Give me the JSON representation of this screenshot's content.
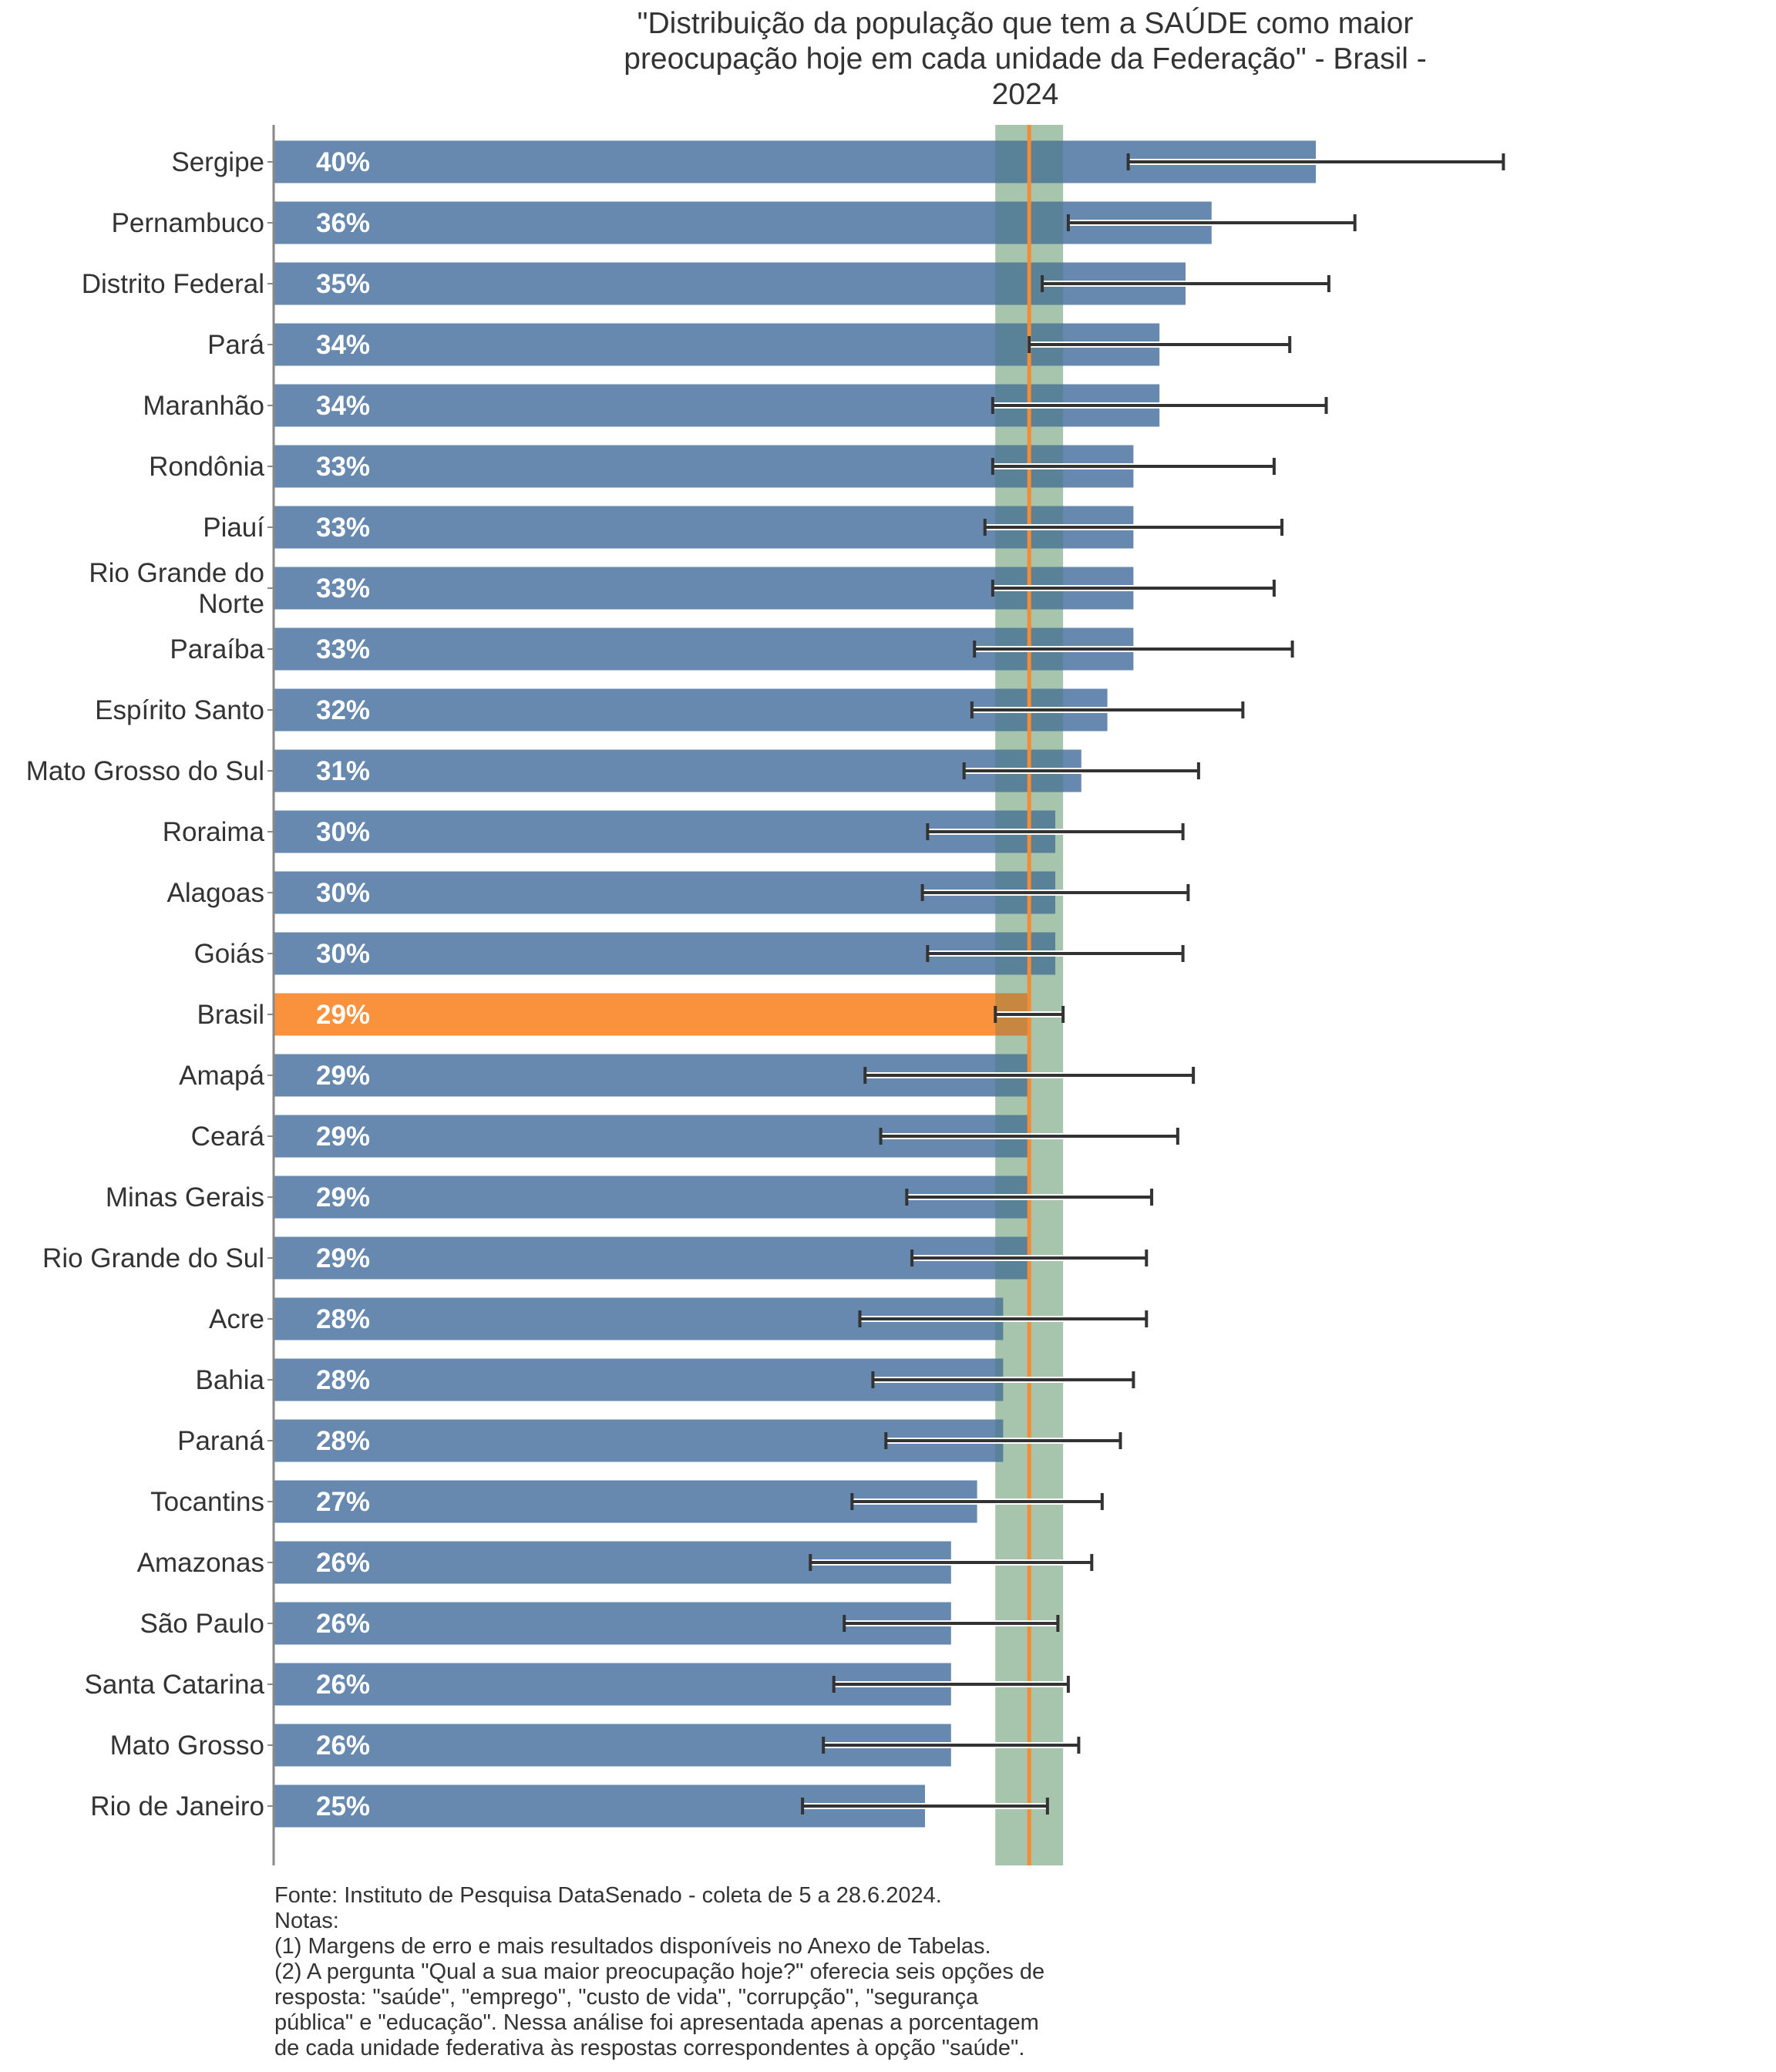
{
  "title": {
    "lines": [
      "\"Distribuição da população que tem a SAÚDE como maior",
      "preocupação hoje em cada unidade da Federação\" - Brasil -",
      "2024"
    ]
  },
  "colors": {
    "bar": "#6789b0",
    "highlight_bar": "#fa913c",
    "reference_line": "#f58b33",
    "reference_band": "#cfe2cc",
    "error_bar": "#333333",
    "axis": "#888888"
  },
  "chart_data": {
    "type": "bar",
    "orientation": "horizontal",
    "title": "\"Distribuição da população que tem a SAÚDE como maior preocupação hoje em cada unidade da Federação\" - Brasil - 2024",
    "xlabel": "",
    "ylabel": "",
    "xlim": [
      0,
      60
    ],
    "grid": false,
    "unit": "%",
    "categories": [
      "Sergipe",
      "Pernambuco",
      "Distrito Federal",
      "Pará",
      "Maranhão",
      "Rondônia",
      "Piauí",
      "Rio Grande do Norte",
      "Paraíba",
      "Espírito Santo",
      "Mato Grosso do Sul",
      "Roraima",
      "Alagoas",
      "Goiás",
      "Brasil",
      "Amapá",
      "Ceará",
      "Minas Gerais",
      "Rio Grande do Sul",
      "Acre",
      "Bahia",
      "Paraná",
      "Tocantins",
      "Amazonas",
      "São Paulo",
      "Santa Catarina",
      "Mato Grosso",
      "Rio de Janeiro"
    ],
    "category_display": [
      "Sergipe",
      "Pernambuco",
      "Distrito Federal",
      "Pará",
      "Maranhão",
      "Rondônia",
      "Piauí",
      "Rio Grande do\nNorte",
      "Paraíba",
      "Espírito Santo",
      "Mato Grosso do Sul",
      "Roraima",
      "Alagoas",
      "Goiás",
      "Brasil",
      "Amapá",
      "Ceará",
      "Minas Gerais",
      "Rio Grande do Sul",
      "Acre",
      "Bahia",
      "Paraná",
      "Tocantins",
      "Amazonas",
      "São Paulo",
      "Santa Catarina",
      "Mato Grosso",
      "Rio de Janeiro"
    ],
    "values": [
      40,
      36,
      35,
      34,
      34,
      33,
      33,
      33,
      33,
      32,
      31,
      30,
      30,
      30,
      29,
      29,
      29,
      29,
      29,
      28,
      28,
      28,
      27,
      26,
      26,
      26,
      26,
      25
    ],
    "value_labels": [
      "40%",
      "36%",
      "35%",
      "34%",
      "34%",
      "33%",
      "33%",
      "33%",
      "33%",
      "32%",
      "31%",
      "30%",
      "30%",
      "30%",
      "29%",
      "29%",
      "29%",
      "29%",
      "29%",
      "28%",
      "28%",
      "28%",
      "27%",
      "26%",
      "26%",
      "26%",
      "26%",
      "25%"
    ],
    "error_low": [
      32.8,
      30.5,
      29.5,
      29.0,
      27.6,
      27.6,
      27.3,
      27.6,
      26.9,
      26.8,
      26.5,
      25.1,
      24.9,
      25.1,
      27.7,
      22.7,
      23.3,
      24.3,
      24.5,
      22.5,
      23.0,
      23.5,
      22.2,
      20.6,
      21.9,
      21.5,
      21.1,
      20.3
    ],
    "error_high": [
      47.2,
      41.5,
      40.5,
      39.0,
      40.4,
      38.4,
      38.7,
      38.4,
      39.1,
      37.2,
      35.5,
      34.9,
      35.1,
      34.9,
      30.3,
      35.3,
      34.7,
      33.7,
      33.5,
      33.5,
      33.0,
      32.5,
      31.8,
      31.4,
      30.1,
      30.5,
      30.9,
      29.7
    ],
    "highlight_category": "Brasil",
    "reference": {
      "label": "Brasil",
      "value": 29,
      "band": [
        27.7,
        30.3
      ]
    }
  },
  "footer": {
    "lines": [
      "Fonte: Instituto de Pesquisa DataSenado - coleta de 5 a 28.6.2024.",
      "Notas:",
      "(1) Margens de erro e mais resultados disponíveis no Anexo de Tabelas.",
      "(2) A pergunta \"Qual a sua maior preocupação hoje?\" oferecia seis opções de",
      "resposta: \"saúde\", \"emprego\", \"custo de vida\", \"corrupção\", \"segurança",
      "pública\" e \"educação\". Nessa análise foi apresentada apenas a porcentagem",
      "de cada unidade federativa às respostas correspondentes à opção \"saúde\"."
    ]
  }
}
